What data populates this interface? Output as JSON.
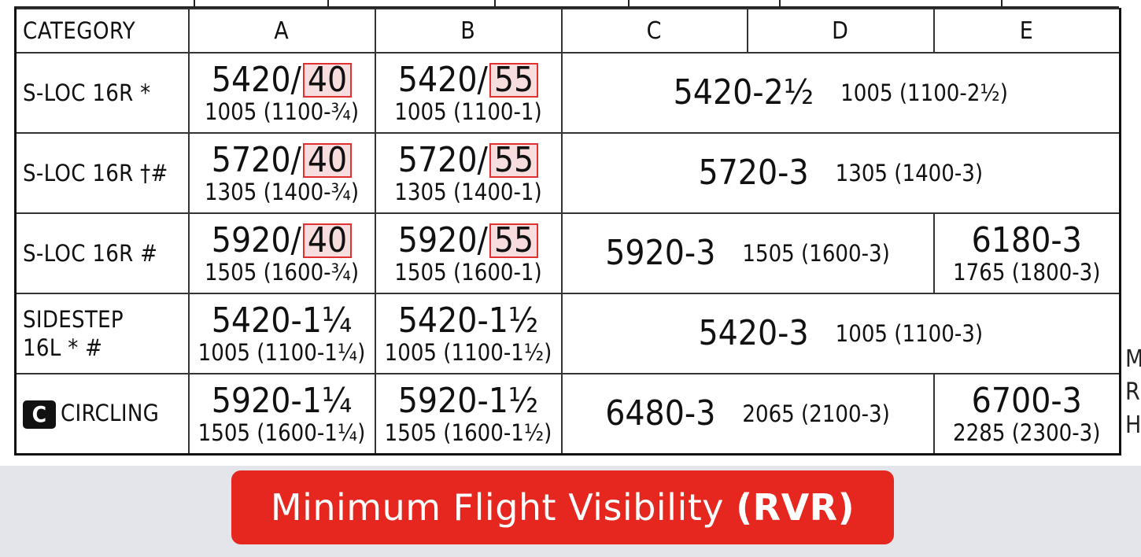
{
  "header": {
    "category": "CATEGORY",
    "cols": [
      "A",
      "B",
      "C",
      "D",
      "E"
    ]
  },
  "rows": [
    {
      "category": "S-LOC 16R *",
      "a": {
        "main": "5420/",
        "hl": "40",
        "sub": "1005 (1100-¾)"
      },
      "b": {
        "main": "5420/",
        "hl": "55",
        "sub": "1005 (1100-1)"
      },
      "cde": {
        "main": "5420-2½",
        "sub": "1005 (1100-2½)"
      }
    },
    {
      "category": "S-LOC 16R †#",
      "a": {
        "main": "5720/",
        "hl": "40",
        "sub": "1305 (1400-¾)"
      },
      "b": {
        "main": "5720/",
        "hl": "55",
        "sub": "1305 (1400-1)"
      },
      "cde": {
        "main": "5720-3",
        "sub": "1305 (1400-3)"
      }
    },
    {
      "category": "S-LOC 16R #",
      "a": {
        "main": "5920/",
        "hl": "40",
        "sub": "1505 (1600-¾)"
      },
      "b": {
        "main": "5920/",
        "hl": "55",
        "sub": "1505 (1600-1)"
      },
      "cd": {
        "main": "5920-3",
        "sub": "1505 (1600-3)"
      },
      "e": {
        "main": "6180-3",
        "sub": "1765 (1800-3)"
      }
    },
    {
      "category_line1": "SIDESTEP",
      "category_line2": "16L * #",
      "a": {
        "main": "5420-1¼",
        "sub": "1005 (1100-1¼)"
      },
      "b": {
        "main": "5420-1½",
        "sub": "1005 (1100-1½)"
      },
      "cde": {
        "main": "5420-3",
        "sub": "1005 (1100-3)"
      }
    },
    {
      "badge": "C",
      "category": "CIRCLING",
      "a": {
        "main": "5920-1¼",
        "sub": "1505 (1600-1¼)"
      },
      "b": {
        "main": "5920-1½",
        "sub": "1505 (1600-1½)"
      },
      "cd": {
        "main": "6480-3",
        "sub": "2065 (2100-3)"
      },
      "e": {
        "main": "6700-3",
        "sub": "2285 (2300-3)"
      }
    }
  ],
  "side_letters": [
    "M",
    "R",
    "H"
  ],
  "banner": {
    "text": "Minimum Flight Visibility",
    "bold": "(RVR)"
  }
}
